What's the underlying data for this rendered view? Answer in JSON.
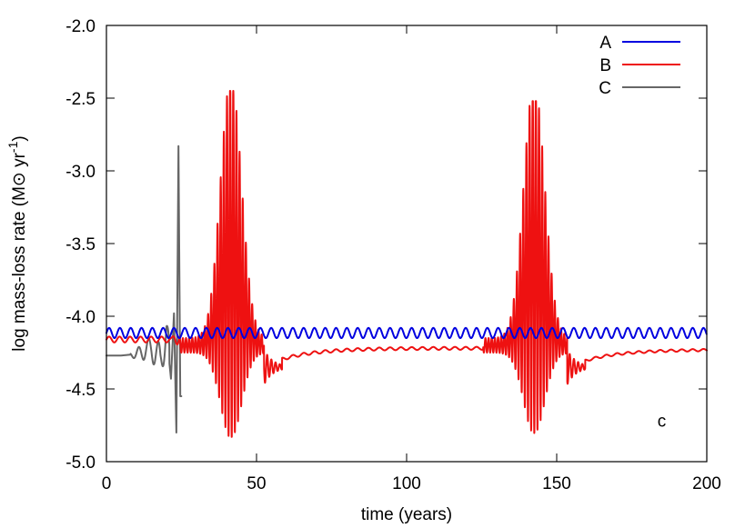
{
  "chart_data": {
    "type": "line",
    "title": "",
    "xlabel": "time (years)",
    "ylabel_main": "log mass-loss rate (M",
    "ylabel_sun": "⊙",
    "ylabel_unit": " yr",
    "ylabel_exp": "-1",
    "ylabel_close": ")",
    "xlim": [
      0,
      200
    ],
    "ylim": [
      -5.0,
      -2.0
    ],
    "x_ticks": [
      0,
      50,
      100,
      150,
      200
    ],
    "x_tick_labels": [
      "0",
      "50",
      "100",
      "150",
      "200"
    ],
    "y_ticks": [
      -2.0,
      -2.5,
      -3.0,
      -3.5,
      -4.0,
      -4.5,
      -5.0
    ],
    "y_tick_labels": [
      "-2.0",
      "-2.5",
      "-3.0",
      "-3.5",
      "-4.0",
      "-4.5",
      "-5.0"
    ],
    "grid": false,
    "legend_position": "top-right",
    "panel_label": "c",
    "series": [
      {
        "name": "A",
        "color": "#0000e0",
        "description_note": "",
        "x": [
          0,
          200
        ],
        "values": [
          -4.11,
          -4.11
        ],
        "oscillation": {
          "mean": -4.115,
          "amplitude": 0.035,
          "period_years": 3.6,
          "x_start": 0,
          "x_end": 200
        }
      },
      {
        "name": "B",
        "color": "#ee1111",
        "x": [
          0,
          12,
          20,
          28,
          36,
          41,
          46,
          50,
          55,
          60,
          80,
          100,
          120,
          130,
          136,
          141,
          146,
          150,
          155,
          160,
          180,
          200
        ],
        "values": [
          -4.16,
          -4.15,
          -4.13,
          -4.1,
          -4.0,
          -2.45,
          -3.2,
          -4.1,
          -4.35,
          -4.31,
          -4.25,
          -4.23,
          -4.22,
          -4.2,
          -4.0,
          -2.52,
          -3.1,
          -4.1,
          -4.38,
          -4.31,
          -4.25,
          -4.23
        ],
        "bursts": [
          {
            "center": 41.5,
            "half_width": 11,
            "max_peak": -2.45,
            "min_trough": -4.83
          },
          {
            "center": 142.5,
            "half_width": 11,
            "max_peak": -2.52,
            "min_trough": -4.84
          }
        ]
      },
      {
        "name": "C",
        "color": "#666666",
        "x": [
          0,
          5,
          10,
          15,
          18,
          20,
          21.5,
          22.5,
          23.3,
          24,
          24.6,
          25
        ],
        "values": [
          -4.27,
          -4.27,
          -4.26,
          -4.22,
          -4.3,
          -4.12,
          -4.43,
          -3.98,
          -4.8,
          -2.83,
          -4.55,
          -4.55
        ]
      }
    ]
  }
}
